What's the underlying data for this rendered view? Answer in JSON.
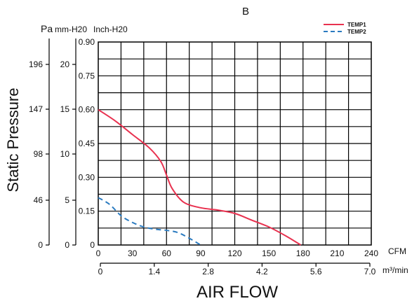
{
  "chart_data": {
    "type": "line",
    "title": "B",
    "xlabel": "AIR FLOW",
    "ylabel": "Static Pressure",
    "xlim": [
      0,
      240
    ],
    "ylim": [
      0,
      0.9
    ],
    "grid": true,
    "legend_position": "top-right",
    "x_ticks": [
      "0",
      "30",
      "60",
      "90",
      "120",
      "150",
      "180",
      "210",
      "240"
    ],
    "x_unit": "CFM",
    "x2_ticks": [
      "0",
      "1.4",
      "2.8",
      "4.2",
      "5.6",
      "7.0"
    ],
    "x2_unit": "m³/min",
    "y_ticks_inch": [
      "0",
      "0.15",
      "0.30",
      "0.45",
      "0.60",
      "0.75",
      "0.90"
    ],
    "y_unit_inch": "Inch-H20",
    "y_ticks_mm": [
      "0",
      "5",
      "10",
      "15",
      "20"
    ],
    "y_unit_mm": "mm-H20",
    "y_ticks_pa": [
      "0",
      "46",
      "98",
      "147",
      "196"
    ],
    "y_unit_pa": "Pa",
    "series": [
      {
        "name": "TEMP1",
        "color": "#e8314f",
        "style": "solid",
        "x": [
          0,
          15,
          30,
          45,
          55,
          60,
          65,
          75,
          90,
          105,
          120,
          135,
          150,
          165,
          178
        ],
        "y": [
          0.6,
          0.55,
          0.49,
          0.43,
          0.37,
          0.31,
          0.25,
          0.19,
          0.165,
          0.155,
          0.14,
          0.11,
          0.08,
          0.04,
          0.0
        ]
      },
      {
        "name": "TEMP2",
        "color": "#2b7bc0",
        "style": "dashed",
        "x": [
          0,
          10,
          20,
          30,
          40,
          50,
          60,
          70,
          80,
          90
        ],
        "y": [
          0.21,
          0.18,
          0.13,
          0.1,
          0.08,
          0.07,
          0.065,
          0.055,
          0.03,
          0.0
        ]
      }
    ]
  }
}
